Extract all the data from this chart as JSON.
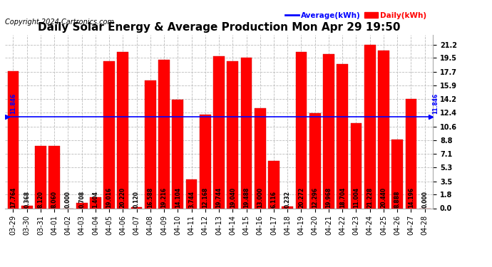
{
  "title": "Daily Solar Energy & Average Production Mon Apr 29 19:50",
  "copyright": "Copyright 2024 Cartronics.com",
  "categories": [
    "03-29",
    "03-30",
    "03-31",
    "04-01",
    "04-02",
    "04-03",
    "04-04",
    "04-05",
    "04-06",
    "04-07",
    "04-08",
    "04-09",
    "04-10",
    "04-11",
    "04-12",
    "04-13",
    "04-14",
    "04-15",
    "04-16",
    "04-17",
    "04-18",
    "04-19",
    "04-20",
    "04-21",
    "04-22",
    "04-23",
    "04-24",
    "04-25",
    "04-26",
    "04-27",
    "04-28"
  ],
  "values": [
    17.764,
    0.368,
    8.12,
    8.06,
    0.0,
    0.708,
    1.404,
    19.016,
    20.22,
    0.12,
    16.588,
    19.216,
    14.104,
    3.744,
    12.168,
    19.744,
    19.04,
    19.488,
    13.0,
    6.116,
    0.232,
    20.272,
    12.296,
    19.968,
    18.704,
    11.004,
    21.228,
    20.44,
    8.888,
    14.196,
    0.0
  ],
  "average": 11.846,
  "bar_color": "#ff0000",
  "average_line_color": "#0000ff",
  "background_color": "#ffffff",
  "grid_color": "#bbbbbb",
  "yticks": [
    0.0,
    1.8,
    3.5,
    5.3,
    7.1,
    8.8,
    10.6,
    12.4,
    14.2,
    15.9,
    17.7,
    19.5,
    21.2
  ],
  "legend_avg_label": "Average(kWh)",
  "legend_daily_label": "Daily(kWh)",
  "avg_label": "11.846",
  "title_fontsize": 11,
  "tick_fontsize": 7,
  "value_fontsize": 5.5,
  "copyright_fontsize": 7
}
